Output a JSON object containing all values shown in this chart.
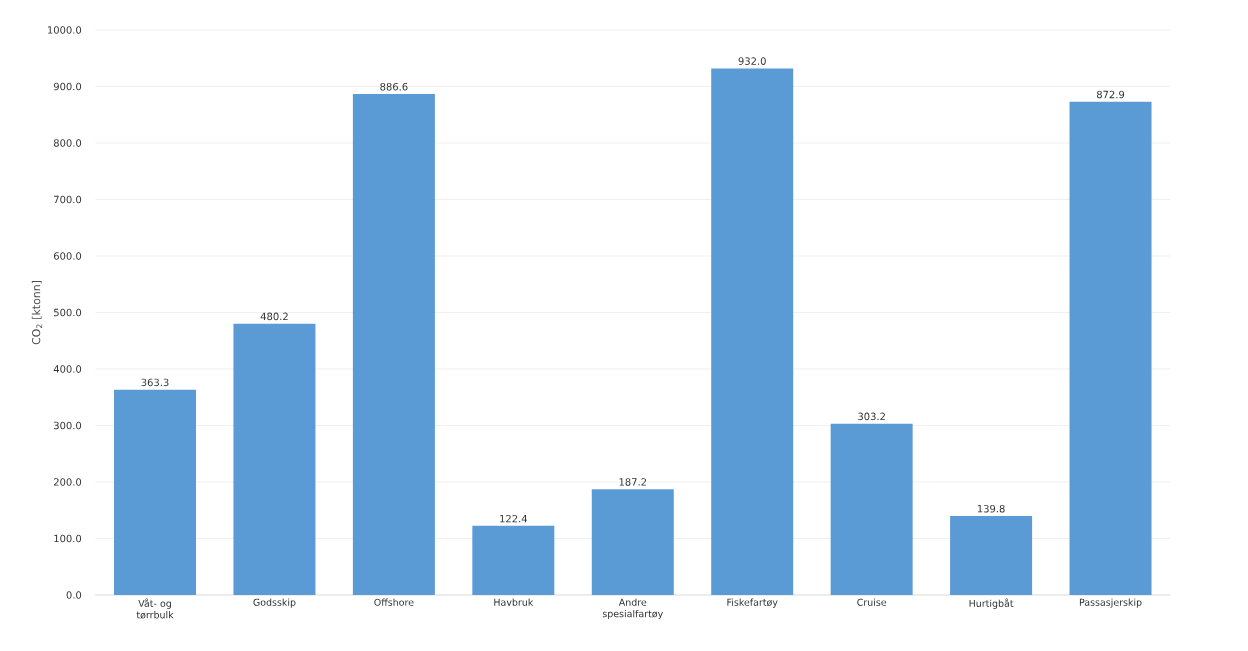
{
  "chart_data": {
    "type": "bar",
    "ylabel": "CO$_{2}$ [ktonn]",
    "categories": [
      "Våt- og tørrbulk",
      "Godsskip",
      "Offshore",
      "Havbruk",
      "Andre spesialfartøy",
      "Fiskefartøy",
      "Cruise",
      "Hurtigbåt",
      "Passasjerskip"
    ],
    "values": [
      363.3,
      480.2,
      886.6,
      122.4,
      187.2,
      932.0,
      303.2,
      139.8,
      872.9
    ],
    "value_labels": [
      "363.3",
      "480.2",
      "886.6",
      "122.4",
      "187.2",
      "932.0",
      "303.2",
      "139.8",
      "872.9"
    ],
    "color": "#5b9bd5",
    "grid": "y",
    "ylim": [
      0,
      1000
    ],
    "yticks": [
      {
        "value": 0,
        "label": "0.0"
      },
      {
        "value": 100,
        "label": "100.0"
      },
      {
        "value": 200,
        "label": "200.0"
      },
      {
        "value": 300,
        "label": "300.0"
      },
      {
        "value": 400,
        "label": "400.0"
      },
      {
        "value": 500,
        "label": "500.0"
      },
      {
        "value": 600,
        "label": "600.0"
      },
      {
        "value": 700,
        "label": "700.0"
      },
      {
        "value": 800,
        "label": "800.0"
      },
      {
        "value": 900,
        "label": "900.0"
      },
      {
        "value": 1000,
        "label": "1000.0"
      }
    ]
  }
}
